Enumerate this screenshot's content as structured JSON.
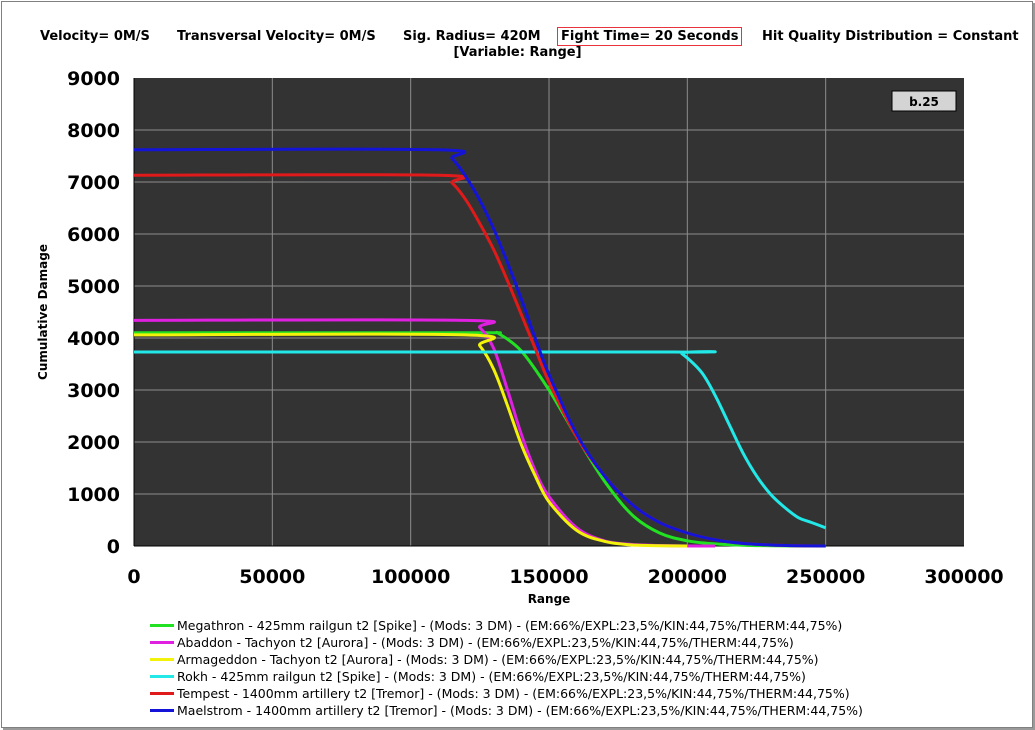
{
  "header": {
    "velocity": "Velocity= 0M/S",
    "transversal": "Transversal Velocity= 0M/S",
    "sig_radius": "Sig. Radius= 420M",
    "fight_time": "Fight Time= 20 Seconds",
    "hit_quality": "Hit Quality Distribution = Constant",
    "variable": "[Variable: Range]"
  },
  "badge": "b.25",
  "colors": {
    "plot_bg": "#333333",
    "grid": "#8c8c8c",
    "highlight_border": "#e8323c"
  },
  "chart_data": {
    "type": "line",
    "xlabel": "Range",
    "ylabel": "Cumulative Damage",
    "xlim": [
      0,
      300000
    ],
    "ylim": [
      0,
      9000
    ],
    "xticks": [
      "0",
      "50000",
      "100000",
      "150000",
      "200000",
      "250000",
      "300000"
    ],
    "yticks": [
      "0",
      "1000",
      "2000",
      "3000",
      "4000",
      "5000",
      "6000",
      "7000",
      "8000",
      "9000"
    ],
    "grid": true,
    "legend_position": "bottom",
    "series": [
      {
        "name": "Megathron - 425mm railgun t2 [Spike] - (Mods: 3 DM) - (EM:66%/EXPL:23,5%/KIN:44,75%/THERM:44,75%)",
        "color": "#22e022",
        "x": [
          0,
          120000,
          130000,
          132000,
          140000,
          150000,
          160000,
          170000,
          180000,
          190000,
          200000,
          210000,
          220000,
          230000,
          240000,
          250000
        ],
        "y": [
          4100,
          4100,
          4100,
          4080,
          3750,
          3000,
          2100,
          1250,
          600,
          250,
          100,
          40,
          15,
          5,
          0,
          0
        ]
      },
      {
        "name": "Abaddon - Tachyon t2 [Aurora] - (Mods: 3 DM) - (EM:66%/EXPL:23,5%/KIN:44,75%/THERM:44,75%)",
        "color": "#e020e0",
        "x": [
          0,
          120000,
          125000,
          130000,
          135000,
          140000,
          145000,
          150000,
          160000,
          170000,
          180000,
          190000,
          200000,
          210000
        ],
        "y": [
          4340,
          4340,
          4200,
          3800,
          3000,
          2150,
          1450,
          950,
          350,
          100,
          30,
          10,
          0,
          0
        ]
      },
      {
        "name": "Armageddon - Tachyon t2 [Aurora] - (Mods: 3 DM) - (EM:66%/EXPL:23,5%/KIN:44,75%/THERM:44,75%)",
        "color": "#f2f20a",
        "x": [
          0,
          120000,
          125000,
          130000,
          135000,
          140000,
          145000,
          150000,
          160000,
          170000,
          180000,
          190000,
          200000
        ],
        "y": [
          4060,
          4060,
          3850,
          3400,
          2700,
          1950,
          1350,
          850,
          300,
          90,
          20,
          5,
          0
        ]
      },
      {
        "name": "Rokh - 425mm railgun t2 [Spike] - (Mods: 3 DM) - (EM:66%/EXPL:23,5%/KIN:44,75%/THERM:44,75%)",
        "color": "#22e8e8",
        "x": [
          0,
          195000,
          198000,
          205000,
          210000,
          215000,
          220000,
          225000,
          230000,
          235000,
          240000,
          245000,
          250000
        ],
        "y": [
          3730,
          3730,
          3700,
          3350,
          2900,
          2350,
          1800,
          1350,
          1000,
          750,
          550,
          450,
          350
        ]
      },
      {
        "name": "Tempest - 1400mm artillery t2 [Tremor] - (Mods: 3 DM) - (EM:66%/EXPL:23,5%/KIN:44,75%/THERM:44,75%)",
        "color": "#e01a1a",
        "x": [
          0,
          110000,
          115000,
          120000,
          125000,
          130000,
          135000,
          140000,
          145000,
          150000,
          160000,
          170000,
          180000,
          190000,
          200000,
          210000,
          220000,
          230000,
          240000,
          250000
        ],
        "y": [
          7130,
          7130,
          6980,
          6650,
          6200,
          5700,
          5100,
          4450,
          3800,
          3150,
          2100,
          1350,
          800,
          450,
          250,
          120,
          50,
          20,
          5,
          0
        ]
      },
      {
        "name": "Maelstrom - 1400mm artillery t2 [Tremor] - (Mods: 3 DM) - (EM:66%/EXPL:23,5%/KIN:44,75%/THERM:44,75%)",
        "color": "#1414d8",
        "x": [
          0,
          110000,
          115000,
          120000,
          125000,
          130000,
          135000,
          140000,
          145000,
          150000,
          160000,
          170000,
          180000,
          190000,
          200000,
          210000,
          220000,
          230000,
          240000,
          250000
        ],
        "y": [
          7620,
          7620,
          7450,
          7100,
          6650,
          6100,
          5450,
          4750,
          4000,
          3300,
          2150,
          1350,
          800,
          450,
          250,
          120,
          50,
          20,
          5,
          0
        ]
      }
    ]
  }
}
